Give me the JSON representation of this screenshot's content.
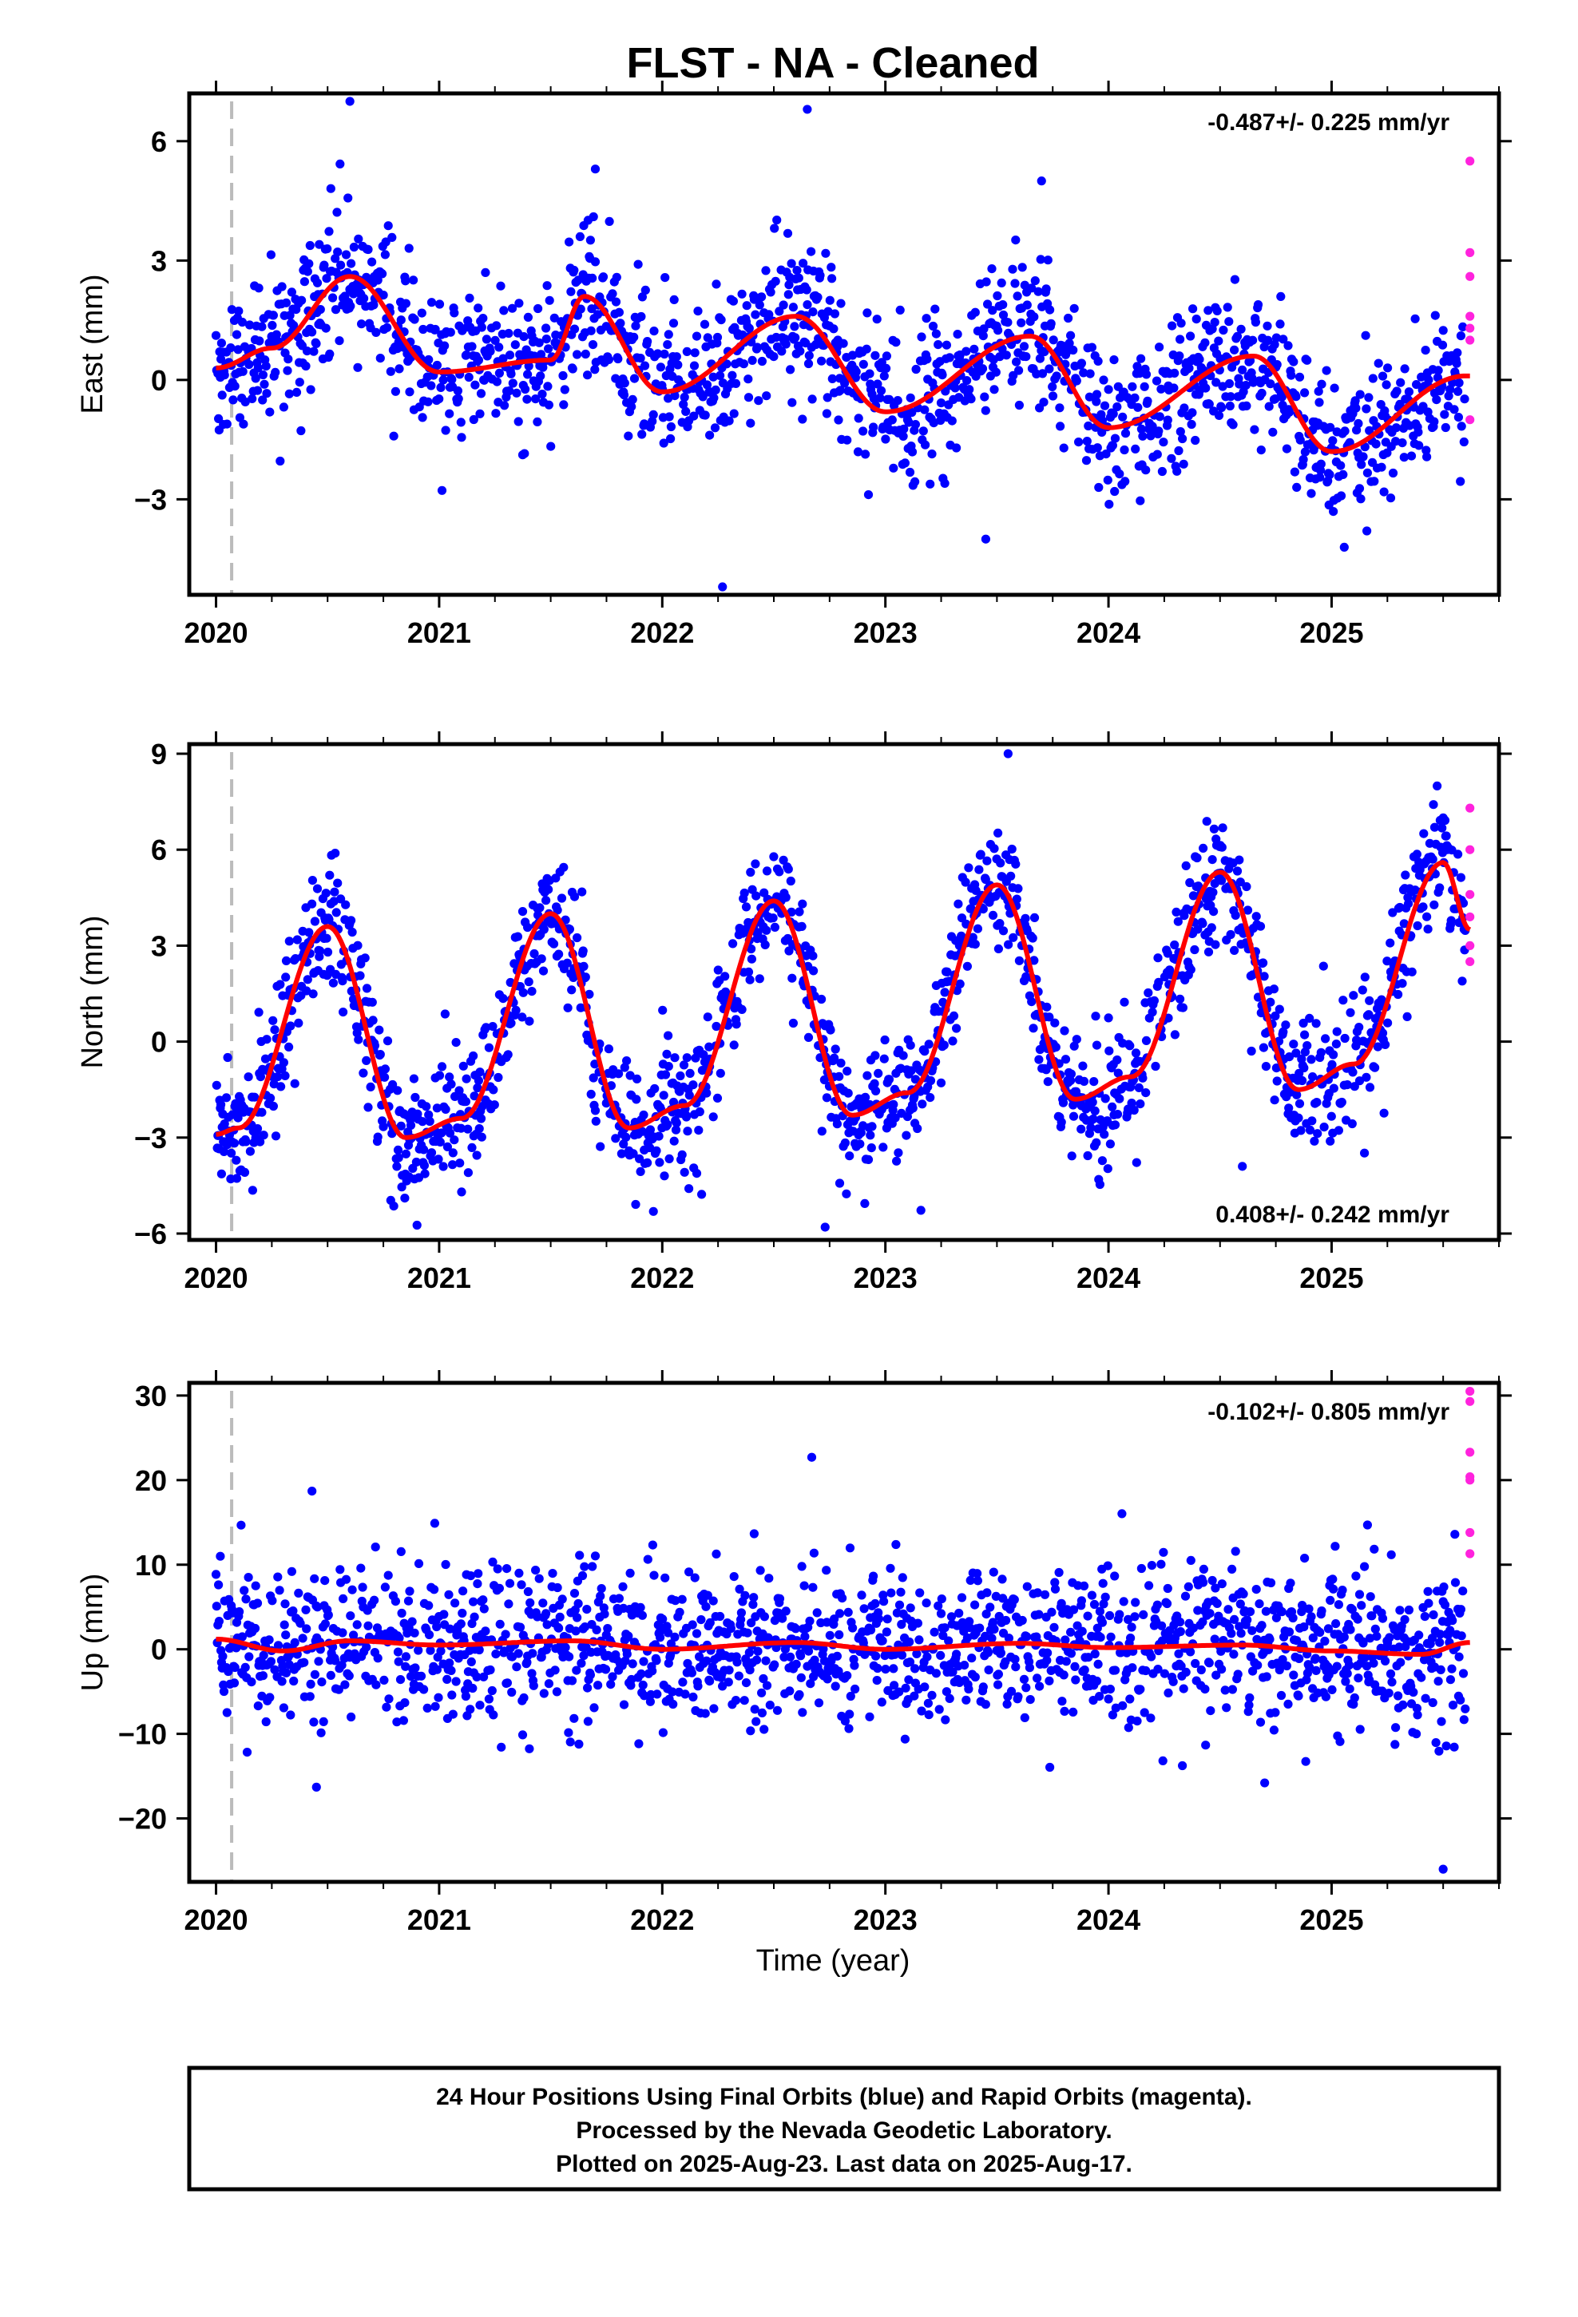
{
  "figure": {
    "title": "FLST  - NA - Cleaned",
    "xlabel": "Time (year)",
    "footer": [
      "24 Hour Positions Using Final Orbits (blue) and Rapid Orbits (magenta).",
      "Processed by the Nevada Geodetic Laboratory.",
      "Plotted on 2025-Aug-23. Last data on 2025-Aug-17."
    ],
    "colors": {
      "final": "#0000ff",
      "rapid": "#ff22dd",
      "model": "#ff0000",
      "event_line": "#bbbbbb",
      "axes": "#000000"
    }
  },
  "chart_data": [
    {
      "type": "scatter",
      "name": "east",
      "ylabel": "East (mm)",
      "rate_label": "-0.487+/- 0.225 mm/yr",
      "rate_position": "top-right",
      "xlim": [
        2019.88,
        2025.75
      ],
      "ylim": [
        -5.4,
        7.2
      ],
      "xticks": [
        2020,
        2021,
        2022,
        2023,
        2024,
        2025
      ],
      "yticks": [
        -3,
        0,
        3,
        6
      ],
      "event_line_x": 2020.07,
      "rate_mm_per_yr": -0.487,
      "annual_amplitude_mm": 0.95,
      "annual_peak_phase": 0.62,
      "semiannual_amplitude_mm": 0.45,
      "noise_scatter_mm": 0.9,
      "model_curve": {
        "x": [
          2020.0,
          2020.25,
          2020.6,
          2021.0,
          2021.5,
          2021.65,
          2022.0,
          2022.6,
          2023.0,
          2023.65,
          2024.0,
          2024.65,
          2025.0,
          2025.6
        ],
        "y": [
          0.3,
          0.8,
          2.6,
          0.2,
          0.5,
          2.1,
          -0.3,
          1.6,
          -0.8,
          1.1,
          -1.2,
          0.6,
          -1.8,
          0.1
        ]
      },
      "rapid_points": {
        "x": [
          2025.62,
          2025.62,
          2025.62,
          2025.62,
          2025.62,
          2025.62,
          2025.62
        ],
        "y": [
          5.5,
          3.2,
          2.6,
          1.6,
          1.3,
          1.0,
          -1.0
        ]
      },
      "outliers": {
        "x": [
          2020.6,
          2021.7,
          2022.27,
          2022.65,
          2023.45,
          2023.7
        ],
        "y": [
          7.0,
          5.3,
          -5.2,
          6.8,
          -4.0,
          5.0
        ]
      }
    },
    {
      "type": "scatter",
      "name": "north",
      "ylabel": "North (mm)",
      "rate_label": "0.408+/- 0.242 mm/yr",
      "rate_position": "bottom-right",
      "xlim": [
        2019.88,
        2025.75
      ],
      "ylim": [
        -6.2,
        9.3
      ],
      "xticks": [
        2020,
        2021,
        2022,
        2023,
        2024,
        2025
      ],
      "yticks": [
        -6,
        -3,
        0,
        3,
        6,
        9
      ],
      "event_line_x": 2020.07,
      "rate_mm_per_yr": 0.408,
      "annual_amplitude_mm": 3.3,
      "annual_peak_phase": 0.5,
      "semiannual_amplitude_mm": 0.7,
      "noise_scatter_mm": 1.0,
      "model_curve": {
        "x": [
          2020.0,
          2020.1,
          2020.5,
          2020.85,
          2021.1,
          2021.5,
          2021.85,
          2022.1,
          2022.5,
          2022.85,
          2023.1,
          2023.5,
          2023.85,
          2024.1,
          2024.5,
          2024.85,
          2025.1,
          2025.5,
          2025.62
        ],
        "y": [
          -2.9,
          -2.7,
          3.6,
          -3.0,
          -2.4,
          4.0,
          -2.7,
          -2.0,
          4.4,
          -2.3,
          -1.6,
          4.9,
          -1.8,
          -1.1,
          5.3,
          -1.5,
          -0.7,
          5.6,
          3.5
        ]
      },
      "rapid_points": {
        "x": [
          2025.62,
          2025.62,
          2025.62,
          2025.62,
          2025.62,
          2025.62
        ],
        "y": [
          7.3,
          6.0,
          4.6,
          3.9,
          3.0,
          2.5
        ]
      },
      "outliers": {
        "x": [
          2023.55,
          2022.73,
          2024.6
        ],
        "y": [
          9.0,
          -5.8,
          -3.9
        ]
      }
    },
    {
      "type": "scatter",
      "name": "up",
      "ylabel": "Up (mm)",
      "rate_label": "-0.102+/- 0.805 mm/yr",
      "rate_position": "top-right",
      "xlim": [
        2019.88,
        2025.75
      ],
      "ylim": [
        -27.5,
        31.5
      ],
      "xticks": [
        2020,
        2021,
        2022,
        2023,
        2024,
        2025
      ],
      "yticks": [
        -20,
        -10,
        0,
        10,
        20,
        30
      ],
      "event_line_x": 2020.07,
      "rate_mm_per_yr": -0.102,
      "annual_amplitude_mm": 0.6,
      "annual_peak_phase": 0.6,
      "semiannual_amplitude_mm": 0.2,
      "noise_scatter_mm": 4.5,
      "model_curve": {
        "x": [
          2020.0,
          2020.3,
          2020.6,
          2021.0,
          2021.6,
          2022.0,
          2022.6,
          2023.0,
          2023.6,
          2024.0,
          2024.6,
          2025.0,
          2025.4,
          2025.62
        ],
        "y": [
          1.2,
          -0.2,
          1.0,
          0.5,
          1.0,
          0.0,
          0.8,
          0.0,
          0.7,
          0.2,
          0.5,
          -0.2,
          -0.6,
          0.8
        ]
      },
      "rapid_points": {
        "x": [
          2025.62,
          2025.62,
          2025.62,
          2025.62,
          2025.62,
          2025.62,
          2025.62
        ],
        "y": [
          30.5,
          29.3,
          23.3,
          20.4,
          20.0,
          13.8,
          11.3
        ]
      },
      "outliers": {
        "x": [
          2020.43,
          2022.67,
          2025.5,
          2020.45,
          2024.7
        ],
        "y": [
          18.7,
          22.7,
          -26.0,
          -16.3,
          -15.8
        ]
      }
    }
  ]
}
